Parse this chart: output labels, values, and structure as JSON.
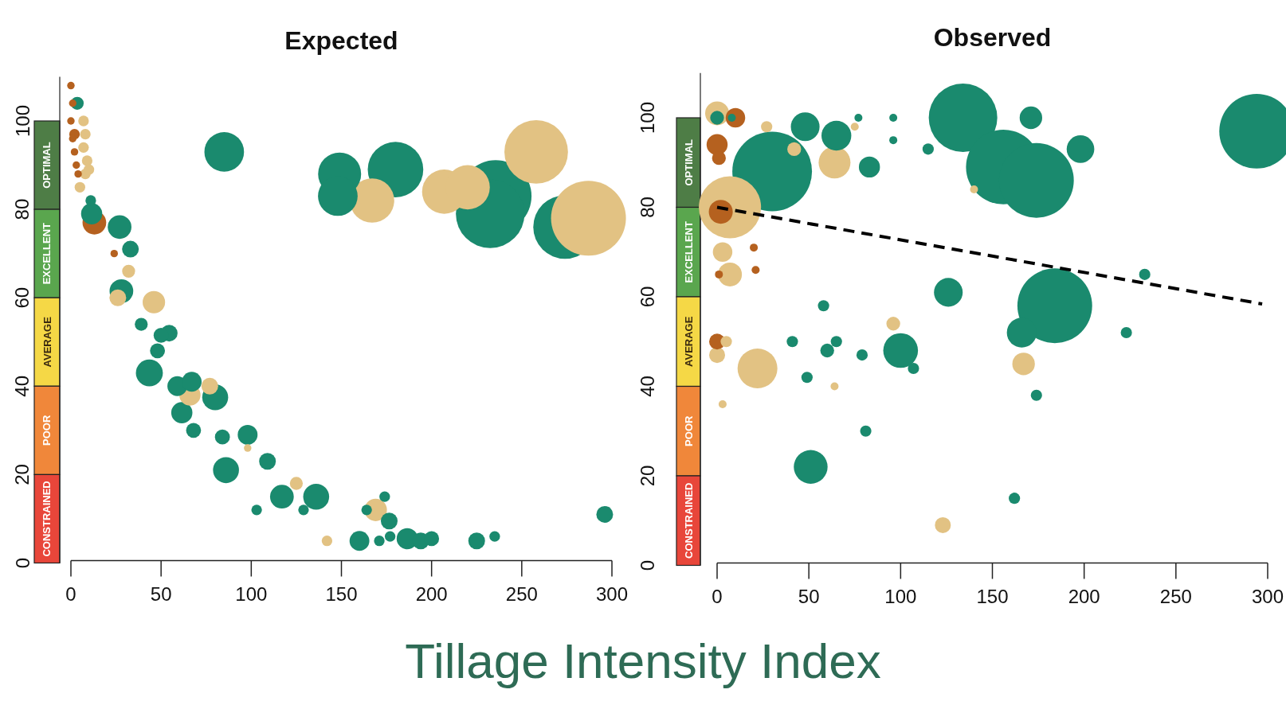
{
  "chart_data": [
    {
      "type": "bubble",
      "title": "Expected",
      "xlabel": "Tillage Intensity Index",
      "xlim": [
        0,
        300
      ],
      "ylim": [
        0,
        110
      ],
      "xticks": [
        0,
        50,
        100,
        150,
        200,
        250,
        300
      ],
      "yticks": [
        0,
        20,
        40,
        60,
        80,
        100
      ],
      "annotations": [
        "OPTIMAL",
        "EXCELLENT",
        "AVERAGE",
        "POOR",
        "CONSTRAINED"
      ],
      "series": [
        {
          "color": "#1a8a6e",
          "x": [
            3.5,
            11,
            11.5,
            27,
            33,
            28,
            85,
            39,
            54.5,
            50,
            48,
            43.5,
            59,
            67,
            80,
            61.5,
            68,
            84,
            98,
            86,
            109,
            103,
            117,
            136,
            129,
            164,
            174,
            176.5,
            160,
            171,
            177,
            186.5,
            194,
            200,
            225,
            235,
            296,
            149,
            148,
            180,
            235.5,
            232.5,
            274
          ],
          "values": [
            104,
            82,
            79,
            76,
            71,
            61.5,
            93,
            54,
            52,
            51.5,
            48,
            43,
            40,
            41,
            37.5,
            34,
            30,
            28.5,
            29,
            21,
            23,
            12,
            15,
            15,
            12,
            12,
            15,
            9.5,
            5,
            5,
            6,
            5.5,
            5,
            5.5,
            5,
            6,
            11,
            88,
            83,
            89,
            83,
            79,
            76
          ],
          "sizes": [
            0.03,
            0.02,
            0.08,
            0.1,
            0.05,
            0.1,
            0.28,
            0.03,
            0.05,
            0.04,
            0.04,
            0.13,
            0.07,
            0.07,
            0.12,
            0.08,
            0.04,
            0.04,
            0.07,
            0.12,
            0.05,
            0.02,
            0.1,
            0.12,
            0.02,
            0.02,
            0.02,
            0.05,
            0.07,
            0.02,
            0.02,
            0.08,
            0.05,
            0.04,
            0.05,
            0.02,
            0.05,
            0.33,
            0.28,
            0.55,
            0.92,
            0.84,
            0.72
          ]
        },
        {
          "color": "#e2c283",
          "x": [
            7,
            8,
            7,
            9,
            8,
            5,
            10,
            32,
            46,
            26,
            66,
            77,
            98,
            125,
            142,
            169,
            167,
            207,
            220,
            258,
            287
          ],
          "values": [
            100,
            97,
            94,
            91,
            88,
            85,
            89,
            66,
            59,
            60,
            38,
            40,
            26,
            18,
            5,
            12,
            82,
            84,
            85,
            93,
            78
          ],
          "sizes": [
            0.02,
            0.02,
            0.02,
            0.02,
            0.02,
            0.02,
            0.02,
            0.03,
            0.09,
            0.05,
            0.08,
            0.05,
            0.01,
            0.03,
            0.02,
            0.09,
            0.35,
            0.35,
            0.35,
            0.72,
            1
          ]
        },
        {
          "color": "#b5611f",
          "x": [
            0,
            1,
            0,
            1,
            2,
            3,
            2,
            4,
            13,
            24
          ],
          "values": [
            108,
            104,
            100,
            96,
            93,
            90,
            97,
            88,
            77,
            70
          ],
          "sizes": [
            0.01,
            0.01,
            0.01,
            0.01,
            0.01,
            0.01,
            0.02,
            0.01,
            0.1,
            0.01
          ]
        }
      ]
    },
    {
      "type": "bubble",
      "title": "Observed",
      "xlim": [
        0,
        300
      ],
      "ylim": [
        0,
        110
      ],
      "xticks": [
        0,
        50,
        100,
        150,
        200,
        250,
        300
      ],
      "yticks": [
        0,
        20,
        40,
        60,
        80,
        100
      ],
      "annotations": [
        "OPTIMAL",
        "EXCELLENT",
        "AVERAGE",
        "POOR",
        "CONSTRAINED"
      ],
      "series": [
        {
          "color": "#1a8a6e",
          "x": [
            0,
            8,
            30,
            48,
            65,
            77,
            96,
            96,
            115,
            83,
            126,
            58,
            41,
            60,
            65,
            79,
            100,
            107,
            49,
            134,
            156,
            174,
            171,
            198,
            294,
            184,
            166,
            233,
            223,
            174,
            51,
            81,
            162
          ],
          "values": [
            100,
            100,
            88,
            98,
            96,
            100,
            100,
            95,
            93,
            89,
            61,
            58,
            50,
            48,
            50,
            47,
            48,
            44,
            42,
            100,
            89,
            86,
            100,
            93,
            97,
            58,
            52,
            65,
            52,
            38,
            22,
            30,
            15
          ],
          "sizes": [
            0.03,
            0.01,
            1,
            0.13,
            0.14,
            0.01,
            0.01,
            0.01,
            0.02,
            0.07,
            0.13,
            0.02,
            0.02,
            0.03,
            0.02,
            0.02,
            0.19,
            0.02,
            0.02,
            0.74,
            0.88,
            0.88,
            0.08,
            0.12,
            0.88,
            0.88,
            0.14,
            0.02,
            0.02,
            0.02,
            0.18,
            0.02,
            0.02
          ]
        },
        {
          "color": "#e2c283",
          "x": [
            0,
            27,
            42,
            64,
            75,
            7,
            3,
            7,
            96,
            0,
            22,
            64,
            5,
            140,
            167,
            3,
            123
          ],
          "values": [
            101,
            98,
            93,
            90,
            98,
            80,
            70,
            65,
            54,
            47,
            44,
            40,
            50,
            84,
            45,
            36,
            9
          ],
          "sizes": [
            0.09,
            0.02,
            0.03,
            0.16,
            0.01,
            0.61,
            0.06,
            0.09,
            0.03,
            0.04,
            0.25,
            0.01,
            0.02,
            0.01,
            0.08,
            0.01,
            0.04
          ]
        },
        {
          "color": "#b5611f",
          "x": [
            10,
            0,
            1,
            2,
            20,
            21,
            1,
            0
          ],
          "values": [
            100,
            94,
            91,
            79,
            71,
            66,
            65,
            50
          ],
          "sizes": [
            0.06,
            0.07,
            0.03,
            0.09,
            0.01,
            0.01,
            0.01,
            0.04
          ]
        },
        {
          "type": "line",
          "color": "#000000",
          "line_style": "dashed",
          "x": [
            0,
            297
          ],
          "values": [
            80,
            58.4
          ]
        }
      ]
    }
  ]
}
